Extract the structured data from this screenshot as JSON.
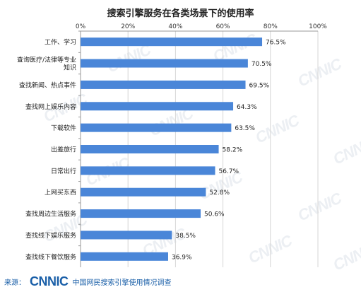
{
  "chart_data": {
    "type": "bar",
    "orientation": "horizontal",
    "title": "搜索引擎服务在各类场景下的使用率",
    "categories": [
      "工作、学习",
      "查询医疗/法律等专业知识",
      "查找新闻、热点事件",
      "查找网上娱乐内容",
      "下载软件",
      "出差旅行",
      "日常出行",
      "上网买东西",
      "查找周边生活服务",
      "查找线下娱乐服务",
      "查找线下餐饮服务"
    ],
    "category_lines": [
      [
        "工作、学习"
      ],
      [
        "查询医疗/法律等专业",
        "知识"
      ],
      [
        "查找新闻、热点事件"
      ],
      [
        "查找网上娱乐内容"
      ],
      [
        "下载软件"
      ],
      [
        "出差旅行"
      ],
      [
        "日常出行"
      ],
      [
        "上网买东西"
      ],
      [
        "查找周边生活服务"
      ],
      [
        "查找线下娱乐服务"
      ],
      [
        "查找线下餐饮服务"
      ]
    ],
    "values": [
      76.5,
      70.5,
      69.5,
      64.3,
      63.5,
      58.2,
      56.7,
      52.8,
      50.6,
      38.5,
      36.9
    ],
    "value_labels": [
      "76.5%",
      "70.5%",
      "69.5%",
      "64.3%",
      "63.5%",
      "58.2%",
      "56.7%",
      "52.8%",
      "50.6%",
      "38.5%",
      "36.9%"
    ],
    "xlim": [
      0,
      100
    ],
    "x_ticks": [
      0,
      20,
      40,
      60,
      80,
      100
    ],
    "x_tick_labels": [
      "0%",
      "20%",
      "40%",
      "60%",
      "80%",
      "100%"
    ],
    "axis_position": "top",
    "grid": true,
    "bar_color": "#4a86d8"
  },
  "watermark_text": "CNNIC",
  "source": {
    "label": "来源：",
    "logo": "CNNIC",
    "text": "中国网民搜索引擎使用情况调查"
  }
}
